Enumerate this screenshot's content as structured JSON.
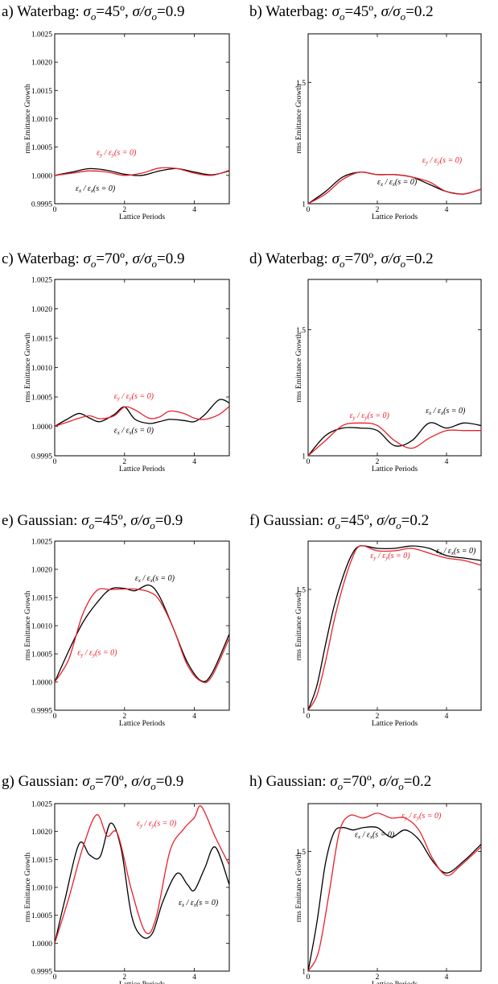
{
  "chart_data": [
    {
      "id": "a",
      "type": "line",
      "title": {
        "prefix": "a) Waterbag: ",
        "phase": "45º",
        "ratio": "0.9"
      },
      "xlabel": "Lattice Periods",
      "ylabel": "rms Emittance Growth",
      "xlim": [
        0,
        5
      ],
      "ylim": [
        0.9995,
        1.0025
      ],
      "xticks": [
        0,
        2,
        4
      ],
      "xtick_labels": [
        "0",
        "2",
        "4"
      ],
      "yticks": [
        0.9995,
        1.0,
        1.0005,
        1.001,
        1.0015,
        1.002,
        1.0025
      ],
      "ytick_labels": [
        "0.9995",
        "1.0000",
        "1.0005",
        "1.0010",
        "1.0015",
        "1.0020",
        "1.0025"
      ],
      "series": [
        {
          "name": "εx / εx(s = 0)",
          "color": "#000000",
          "x": [
            0,
            0.5,
            1.0,
            1.5,
            2.0,
            2.5,
            3.0,
            3.5,
            4.0,
            4.5,
            5.0
          ],
          "y": [
            1.0,
            1.00006,
            1.00012,
            1.00009,
            1.00002,
            1.0,
            1.00008,
            1.00012,
            1.00006,
            1.00001,
            1.00008
          ]
        },
        {
          "name": "εy / εy(s = 0)",
          "color": "#e8202a",
          "x": [
            0,
            0.5,
            1.0,
            1.5,
            2.0,
            2.5,
            3.0,
            3.5,
            4.0,
            4.5,
            5.0
          ],
          "y": [
            1.0,
            1.00004,
            1.00008,
            1.00006,
            1.0,
            1.00004,
            1.00013,
            1.00012,
            1.00004,
            1.0,
            1.00009
          ]
        }
      ],
      "labels": [
        {
          "series": 1,
          "x": 1.2,
          "y": 1.00036,
          "text_main": "ε",
          "sub": "y",
          "rest": " / ε",
          "sub2": "y",
          "tail": "(s = 0)"
        },
        {
          "series": 0,
          "x": 0.6,
          "y": 0.99973,
          "text_main": "ε",
          "sub": "x",
          "rest": " / ε",
          "sub2": "x",
          "tail": "(s = 0)"
        }
      ]
    },
    {
      "id": "b",
      "type": "line",
      "title": {
        "prefix": "b) Waterbag: ",
        "phase": "45º",
        "ratio": "0.2"
      },
      "xlabel": "Lattice Periods",
      "ylabel": "rms Emittance Growth",
      "xlim": [
        0,
        5
      ],
      "ylim": [
        1.0,
        1.7
      ],
      "xticks": [
        0,
        2,
        4
      ],
      "xtick_labels": [
        "0",
        "2",
        "4"
      ],
      "yticks": [
        1.0,
        1.5
      ],
      "ytick_labels": [
        "1",
        "1.5"
      ],
      "series": [
        {
          "name": "εx / εx(s = 0)",
          "color": "#000000",
          "x": [
            0,
            0.5,
            1.0,
            1.5,
            2.0,
            2.5,
            3.0,
            3.5,
            4.0,
            4.5,
            5.0
          ],
          "y": [
            1.0,
            1.05,
            1.11,
            1.13,
            1.12,
            1.12,
            1.11,
            1.08,
            1.05,
            1.04,
            1.06
          ]
        },
        {
          "name": "εy / εy(s = 0)",
          "color": "#e8202a",
          "x": [
            0,
            0.5,
            1.0,
            1.5,
            2.0,
            2.5,
            3.0,
            3.5,
            4.0,
            4.5,
            5.0
          ],
          "y": [
            1.0,
            1.04,
            1.1,
            1.13,
            1.12,
            1.12,
            1.11,
            1.09,
            1.05,
            1.04,
            1.06
          ]
        }
      ],
      "labels": [
        {
          "series": 1,
          "x": 3.3,
          "y": 1.17,
          "text_main": "ε",
          "sub": "y",
          "rest": " / ε",
          "sub2": "y",
          "tail": "(s = 0)"
        },
        {
          "series": 0,
          "x": 2.0,
          "y": 1.08,
          "text_main": "ε",
          "sub": "x",
          "rest": " / ε",
          "sub2": "x",
          "tail": "(s = 0)"
        }
      ]
    },
    {
      "id": "c",
      "type": "line",
      "title": {
        "prefix": "c) Waterbag: ",
        "phase": "70º",
        "ratio": "0.9"
      },
      "xlabel": "Lattice Periods",
      "ylabel": "rms Emittance Growth",
      "xlim": [
        0,
        5
      ],
      "ylim": [
        0.9995,
        1.0025
      ],
      "xticks": [
        0,
        2,
        4
      ],
      "xtick_labels": [
        "0",
        "2",
        "4"
      ],
      "yticks": [
        0.9995,
        1.0,
        1.0005,
        1.001,
        1.0015,
        1.002,
        1.0025
      ],
      "ytick_labels": [
        "0.9995",
        "1.0000",
        "1.0005",
        "1.0010",
        "1.0015",
        "1.0020",
        "1.0025"
      ],
      "series": [
        {
          "name": "εx / εx(s = 0)",
          "color": "#000000",
          "x": [
            0,
            0.35,
            0.7,
            1.0,
            1.3,
            1.7,
            2.0,
            2.3,
            2.7,
            3.0,
            3.3,
            3.7,
            4.0,
            4.3,
            4.7,
            5.0
          ],
          "y": [
            1.0,
            1.00012,
            1.00022,
            1.00014,
            1.00008,
            1.0002,
            1.00033,
            1.00012,
            1.00005,
            1.00008,
            1.00012,
            1.0001,
            1.00008,
            1.0002,
            1.00045,
            1.0004
          ]
        },
        {
          "name": "εy / εy(s = 0)",
          "color": "#e8202a",
          "x": [
            0,
            0.35,
            0.7,
            1.0,
            1.3,
            1.7,
            2.0,
            2.3,
            2.7,
            3.0,
            3.3,
            3.7,
            4.0,
            4.3,
            4.7,
            5.0
          ],
          "y": [
            1.0,
            1.00007,
            1.00014,
            1.00018,
            1.00013,
            1.00018,
            1.00033,
            1.00028,
            1.00014,
            1.00016,
            1.00026,
            1.00022,
            1.00014,
            1.00012,
            1.0002,
            1.00034
          ]
        }
      ],
      "labels": [
        {
          "series": 1,
          "x": 1.7,
          "y": 1.00047,
          "text_main": "ε",
          "sub": "y",
          "rest": " / ε",
          "sub2": "y",
          "tail": "(s = 0)"
        },
        {
          "series": 0,
          "x": 1.7,
          "y": 0.99989,
          "text_main": "ε",
          "sub": "x",
          "rest": " / ε",
          "sub2": "x",
          "tail": "(s = 0)"
        }
      ]
    },
    {
      "id": "d",
      "type": "line",
      "title": {
        "prefix": "d) Waterbag: ",
        "phase": "70º",
        "ratio": "0.2"
      },
      "xlabel": "Lattice Periods",
      "ylabel": "rms Emittance Growth",
      "xlim": [
        0,
        5
      ],
      "ylim": [
        1.0,
        1.7
      ],
      "xticks": [
        0,
        2,
        4
      ],
      "xtick_labels": [
        "0",
        "2",
        "4"
      ],
      "yticks": [
        1.0,
        1.5
      ],
      "ytick_labels": [
        "1",
        "1.5"
      ],
      "series": [
        {
          "name": "εx / εx(s = 0)",
          "color": "#000000",
          "x": [
            0,
            0.5,
            1.0,
            1.5,
            2.0,
            2.5,
            3.0,
            3.5,
            4.0,
            4.5,
            5.0
          ],
          "y": [
            1.0,
            1.08,
            1.11,
            1.11,
            1.1,
            1.04,
            1.06,
            1.13,
            1.11,
            1.13,
            1.12
          ]
        },
        {
          "name": "εy / εy(s = 0)",
          "color": "#e8202a",
          "x": [
            0,
            0.5,
            1.0,
            1.5,
            2.0,
            2.5,
            3.0,
            3.5,
            4.0,
            4.5,
            5.0
          ],
          "y": [
            1.0,
            1.06,
            1.12,
            1.13,
            1.12,
            1.06,
            1.03,
            1.07,
            1.1,
            1.1,
            1.1
          ]
        }
      ],
      "labels": [
        {
          "series": 1,
          "x": 1.2,
          "y": 1.15,
          "text_main": "ε",
          "sub": "y",
          "rest": " / ε",
          "sub2": "y",
          "tail": "(s = 0)"
        },
        {
          "series": 0,
          "x": 3.4,
          "y": 1.17,
          "text_main": "ε",
          "sub": "x",
          "rest": " / ε",
          "sub2": "x",
          "tail": "(s = 0)"
        }
      ]
    },
    {
      "id": "e",
      "type": "line",
      "title": {
        "prefix": "e) Gaussian: ",
        "phase": "45º",
        "ratio": "0.9"
      },
      "xlabel": "Lattice Periods",
      "ylabel": "rms Emittance Growth",
      "xlim": [
        0,
        5
      ],
      "ylim": [
        0.9995,
        1.0025
      ],
      "xticks": [
        0,
        2,
        4
      ],
      "xtick_labels": [
        "0",
        "2",
        "4"
      ],
      "yticks": [
        0.9995,
        1.0,
        1.0005,
        1.001,
        1.0015,
        1.002,
        1.0025
      ],
      "ytick_labels": [
        "0.9995",
        "1.0000",
        "1.0005",
        "1.0010",
        "1.0015",
        "1.0020",
        "1.0025"
      ],
      "series": [
        {
          "name": "εx / εx(s = 0)",
          "color": "#000000",
          "x": [
            0,
            0.4,
            0.8,
            1.2,
            1.6,
            2.0,
            2.3,
            2.7,
            3.0,
            3.4,
            3.8,
            4.2,
            4.5,
            5.0
          ],
          "y": [
            1.0,
            1.00055,
            1.00105,
            1.0014,
            1.00165,
            1.00166,
            1.00162,
            1.00172,
            1.00152,
            1.00095,
            1.00035,
            1.00002,
            1.00015,
            1.00085
          ]
        },
        {
          "name": "εy / εy(s = 0)",
          "color": "#e8202a",
          "x": [
            0,
            0.4,
            0.8,
            1.2,
            1.6,
            2.0,
            2.3,
            2.7,
            3.0,
            3.4,
            3.8,
            4.2,
            4.5,
            5.0
          ],
          "y": [
            1.0,
            1.0004,
            1.0012,
            1.00162,
            1.00164,
            1.00165,
            1.00165,
            1.0016,
            1.00145,
            1.00095,
            1.0003,
            1.00001,
            1.0001,
            1.00078
          ]
        }
      ],
      "labels": [
        {
          "series": 0,
          "x": 2.3,
          "y": 1.0018,
          "text_main": "ε",
          "sub": "x",
          "rest": " / ε",
          "sub2": "x",
          "tail": "(s = 0)"
        },
        {
          "series": 1,
          "x": 0.65,
          "y": 1.00048,
          "text_main": "ε",
          "sub": "y",
          "rest": " / ε",
          "sub2": "y",
          "tail": "(s = 0)"
        }
      ]
    },
    {
      "id": "f",
      "type": "line",
      "title": {
        "prefix": "f) Gaussian: ",
        "phase": "45º",
        "ratio": "0.2"
      },
      "xlabel": "Lattice Periods",
      "ylabel": "rms Emittance Growth",
      "xlim": [
        0,
        5
      ],
      "ylim": [
        1.0,
        1.7
      ],
      "xticks": [
        0,
        2,
        4
      ],
      "xtick_labels": [
        "0",
        "2",
        "4"
      ],
      "yticks": [
        1.0,
        1.5
      ],
      "ytick_labels": [
        "1",
        "1.5"
      ],
      "series": [
        {
          "name": "εx / εx(s = 0)",
          "color": "#000000",
          "x": [
            0,
            0.25,
            0.5,
            0.75,
            1.0,
            1.25,
            1.5,
            2.0,
            2.5,
            3.0,
            3.5,
            4.0,
            4.5,
            5.0
          ],
          "y": [
            1.0,
            1.1,
            1.27,
            1.43,
            1.55,
            1.64,
            1.68,
            1.67,
            1.67,
            1.68,
            1.67,
            1.64,
            1.63,
            1.62
          ]
        },
        {
          "name": "εy / εy(s = 0)",
          "color": "#e8202a",
          "x": [
            0,
            0.25,
            0.5,
            0.75,
            1.0,
            1.25,
            1.5,
            2.0,
            2.5,
            3.0,
            3.5,
            4.0,
            4.5,
            5.0
          ],
          "y": [
            1.0,
            1.06,
            1.2,
            1.37,
            1.51,
            1.62,
            1.68,
            1.66,
            1.66,
            1.67,
            1.65,
            1.63,
            1.62,
            1.6
          ]
        }
      ],
      "labels": [
        {
          "series": 0,
          "x": 3.7,
          "y": 1.65,
          "text_main": "ε",
          "sub": "x",
          "rest": " / ε",
          "sub2": "x",
          "tail": "(s = 0)"
        },
        {
          "series": 1,
          "x": 1.8,
          "y": 1.63,
          "text_main": "ε",
          "sub": "y",
          "rest": " / ε",
          "sub2": "y",
          "tail": "(s = 0)"
        }
      ]
    },
    {
      "id": "g",
      "type": "line",
      "title": {
        "prefix": "g) Gaussian: ",
        "phase": "70º",
        "ratio": "0.9"
      },
      "xlabel": "Lattice Periods",
      "ylabel": "rms Emittance Growth",
      "xlim": [
        0,
        5
      ],
      "ylim": [
        0.9995,
        1.0025
      ],
      "xticks": [
        0,
        2,
        4
      ],
      "xtick_labels": [
        "0",
        "2",
        "4"
      ],
      "yticks": [
        0.9995,
        1.0,
        1.0005,
        1.001,
        1.0015,
        1.002,
        1.0025
      ],
      "ytick_labels": [
        "0.9995",
        "1.0000",
        "1.0005",
        "1.0010",
        "1.0015",
        "1.0020",
        "1.0025"
      ],
      "series": [
        {
          "name": "εx / εx(s = 0)",
          "color": "#000000",
          "x": [
            0,
            0.3,
            0.7,
            1.0,
            1.3,
            1.6,
            1.9,
            2.2,
            2.5,
            2.8,
            3.1,
            3.5,
            3.8,
            4.0,
            4.3,
            4.6,
            5.0
          ],
          "y": [
            1.0,
            1.0008,
            1.00178,
            1.00158,
            1.00155,
            1.00215,
            1.0017,
            1.0005,
            1.00012,
            1.00018,
            1.00075,
            1.00125,
            1.00105,
            1.00095,
            1.00135,
            1.00172,
            1.00105
          ]
        },
        {
          "name": "εy / εy(s = 0)",
          "color": "#e8202a",
          "x": [
            0,
            0.4,
            0.8,
            1.2,
            1.5,
            1.8,
            2.2,
            2.6,
            2.9,
            3.3,
            3.7,
            4.0,
            4.2,
            4.6,
            5.0
          ],
          "y": [
            1.0,
            1.0008,
            1.0017,
            1.0023,
            1.00192,
            1.00196,
            1.00095,
            1.0002,
            1.00045,
            1.00165,
            1.00205,
            1.00225,
            1.00245,
            1.0019,
            1.0014
          ]
        }
      ],
      "labels": [
        {
          "series": 1,
          "x": 2.35,
          "y": 1.0021,
          "text_main": "ε",
          "sub": "y",
          "rest": " / ε",
          "sub2": "y",
          "tail": "(s = 0)"
        },
        {
          "series": 0,
          "x": 3.55,
          "y": 1.00068,
          "text_main": "ε",
          "sub": "x",
          "rest": " / ε",
          "sub2": "x",
          "tail": "(s = 0)"
        }
      ]
    },
    {
      "id": "h",
      "type": "line",
      "title": {
        "prefix": "h) Gaussian: ",
        "phase": "70º",
        "ratio": "0.2"
      },
      "xlabel": "Lattice Periods",
      "ylabel": "rms Emittance Growth",
      "xlim": [
        0,
        5
      ],
      "ylim": [
        1.0,
        1.7
      ],
      "xticks": [
        0,
        2,
        4
      ],
      "xtick_labels": [
        "0",
        "2",
        "4"
      ],
      "yticks": [
        1.0,
        1.5
      ],
      "ytick_labels": [
        "1",
        "1.5"
      ],
      "series": [
        {
          "name": "εx / εx(s = 0)",
          "color": "#000000",
          "x": [
            0,
            0.25,
            0.5,
            0.75,
            1.0,
            1.3,
            1.6,
            2.0,
            2.4,
            2.8,
            3.2,
            3.6,
            4.0,
            4.5,
            5.0
          ],
          "y": [
            1.0,
            1.2,
            1.45,
            1.58,
            1.6,
            1.59,
            1.6,
            1.6,
            1.56,
            1.59,
            1.55,
            1.46,
            1.41,
            1.46,
            1.53
          ]
        },
        {
          "name": "εy / εy(s = 0)",
          "color": "#e8202a",
          "x": [
            0,
            0.3,
            0.6,
            0.9,
            1.2,
            1.6,
            2.0,
            2.4,
            2.8,
            3.2,
            3.6,
            4.0,
            4.4,
            5.0
          ],
          "y": [
            1.0,
            1.08,
            1.32,
            1.58,
            1.65,
            1.64,
            1.66,
            1.64,
            1.64,
            1.59,
            1.47,
            1.4,
            1.44,
            1.52
          ]
        }
      ],
      "labels": [
        {
          "series": 1,
          "x": 2.7,
          "y": 1.64,
          "text_main": "ε",
          "sub": "y",
          "rest": " / ε",
          "sub2": "y",
          "tail": "(s = 0)"
        },
        {
          "series": 0,
          "x": 1.35,
          "y": 1.56,
          "text_main": "ε",
          "sub": "x",
          "rest": " / ε",
          "sub2": "x",
          "tail": "(s = 0)"
        }
      ]
    }
  ]
}
